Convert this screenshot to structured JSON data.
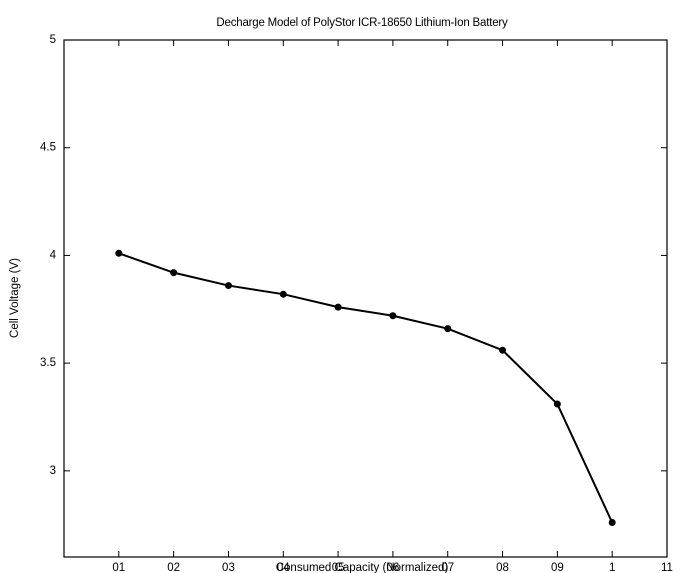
{
  "chart_data": {
    "type": "line",
    "title": "Decharge Model of PolyStor ICR-18650 Lithium-Ion Battery",
    "xlabel": "Consumed Capacity (Normalized)",
    "ylabel": "Cell Voltage (V)",
    "xlim": [
      0,
      1.1
    ],
    "ylim": [
      2.6,
      5.0
    ],
    "x_ticks": [
      0.1,
      0.2,
      0.3,
      0.4,
      0.5,
      0.6,
      0.7,
      0.8,
      0.9,
      1.0,
      1.1
    ],
    "x_tick_labels": [
      "01",
      "02",
      "03",
      "04",
      "05",
      "06",
      "07",
      "08",
      "09",
      "1",
      "11"
    ],
    "y_ticks": [
      3.0,
      3.5,
      4.0,
      4.5,
      5.0
    ],
    "y_tick_labels": [
      "3",
      "3.5",
      "4",
      "4.5",
      "5"
    ],
    "grid": false,
    "series": [
      {
        "x": [
          0.1,
          0.2,
          0.3,
          0.4,
          0.5,
          0.6,
          0.7,
          0.8,
          0.9,
          1.0
        ],
        "values": [
          4.01,
          3.92,
          3.86,
          3.82,
          3.76,
          3.72,
          3.66,
          3.56,
          3.31,
          2.76
        ],
        "color": "#000000",
        "marker": "circle"
      }
    ]
  }
}
